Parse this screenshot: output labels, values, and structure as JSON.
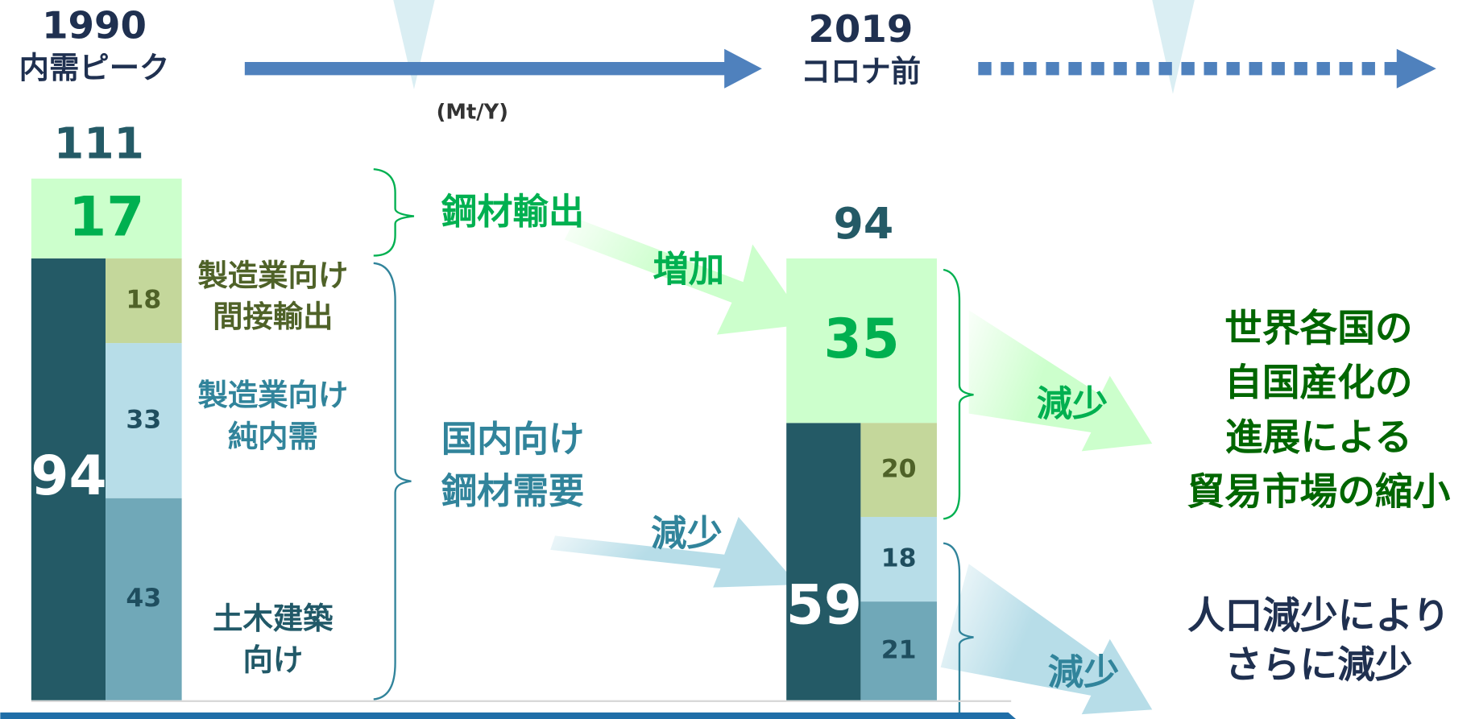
{
  "header": {
    "start_year": "1990",
    "start_label": "内需ピーク",
    "end_year": "2019",
    "end_label": "コロナ前",
    "unit": "(Mt/Y)"
  },
  "bars": [
    {
      "total": 111,
      "export": 17,
      "domestic": 94,
      "segments": [
        18,
        33,
        43
      ]
    },
    {
      "total": 94,
      "export": 35,
      "domestic": 59,
      "segments": [
        20,
        18,
        21
      ]
    }
  ],
  "segment_labels": [
    [
      "製造業向け",
      "間接輸出"
    ],
    [
      "製造業向け",
      "純内需"
    ],
    [
      "土木建築",
      "向け"
    ]
  ],
  "annotations": {
    "export": "鋼材輸出",
    "increase": "増加",
    "domestic": [
      "国内向け",
      "鋼材需要"
    ],
    "decrease_domestic": "減少",
    "decrease_export": "減少",
    "decrease_future": "減少",
    "trade_reason": [
      "世界各国の",
      "自国産化の",
      "進展による",
      "貿易市場の縮小"
    ],
    "population_reason": [
      "人口減少により",
      "さらに減少"
    ]
  }
}
